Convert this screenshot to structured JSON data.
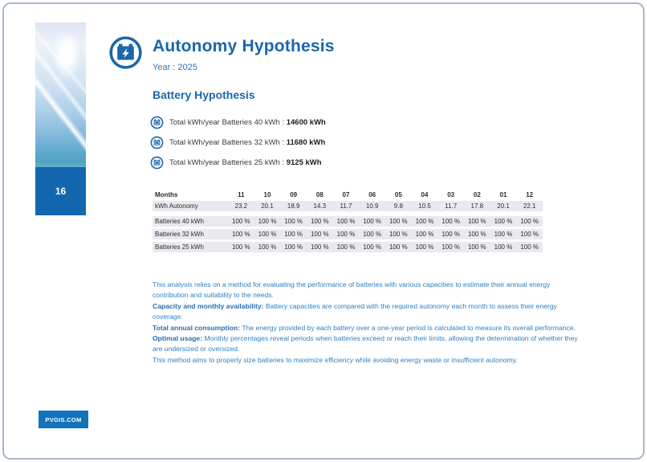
{
  "page": {
    "number": "16",
    "footer_badge": "PVGIS.COM"
  },
  "header": {
    "title": "Autonomy Hypothesis",
    "year_label": "Year : 2025",
    "icon": "battery-bolt-icon"
  },
  "section": {
    "title": "Battery Hypothesis",
    "totals": [
      {
        "icon": "battery-icon",
        "label": "Total kWh/year Batteries 40 kWh :",
        "value": "14600 kWh"
      },
      {
        "icon": "battery-icon",
        "label": "Total kWh/year Batteries 32 kWh :",
        "value": "11680 kWh"
      },
      {
        "icon": "battery-icon",
        "label": "Total kWh/year Batteries 25 kWh :",
        "value": "9125 kWh"
      }
    ]
  },
  "table": {
    "months_row": {
      "label": "Months",
      "values": [
        "11",
        "10",
        "09",
        "08",
        "07",
        "06",
        "05",
        "04",
        "03",
        "02",
        "01",
        "12"
      ]
    },
    "autonomy_row": {
      "label": "kWh Autonomy",
      "values": [
        "23.2",
        "20.1",
        "18.9",
        "14.3",
        "11.7",
        "10.9",
        "9.8",
        "10.5",
        "11.7",
        "17.8",
        "20.1",
        "22.1"
      ]
    },
    "battery_rows": [
      {
        "label": "Batteries 40 kWh",
        "values": [
          "100 %",
          "100 %",
          "100 %",
          "100 %",
          "100 %",
          "100 %",
          "100 %",
          "100 %",
          "100 %",
          "100 %",
          "100 %",
          "100 %"
        ]
      },
      {
        "label": "Batteries 32 kWh",
        "values": [
          "100 %",
          "100 %",
          "100 %",
          "100 %",
          "100 %",
          "100 %",
          "100 %",
          "100 %",
          "100 %",
          "100 %",
          "100 %",
          "100 %"
        ]
      },
      {
        "label": "Batteries 25 kWh",
        "values": [
          "100 %",
          "100 %",
          "100 %",
          "100 %",
          "100 %",
          "100 %",
          "100 %",
          "100 %",
          "100 %",
          "100 %",
          "100 %",
          "100 %"
        ]
      }
    ]
  },
  "notes": {
    "lines": [
      {
        "bold": "",
        "text": "This analysis relies on a method for evaluating the performance of batteries with various capacities to estimate their annual energy contribution and suitability to the needs."
      },
      {
        "bold": "Capacity and monthly availability:",
        "text": " Battery capacities are compared with the required autonomy each month to assess their energy coverage."
      },
      {
        "bold": "Total annual consumption:",
        "text": " The energy provided by each battery over a one-year period is calculated to measure its overall performance."
      },
      {
        "bold": "Optimal usage:",
        "text": " Monthly percentages reveal periods when batteries exceed or reach their limits, allowing the determination of whether they are undersized or oversized."
      },
      {
        "bold": "",
        "text": "This method aims to properly size batteries to maximize efficiency while avoiding energy waste or insufficient autonomy."
      }
    ]
  },
  "colors": {
    "accent_blue": "#1a67ab",
    "note_blue": "#2e7fc1",
    "row_background": "#e9e9f0",
    "page_number_block": "#1266ae",
    "badge_background": "#1273bd",
    "page_border": "#a9b7c9"
  }
}
